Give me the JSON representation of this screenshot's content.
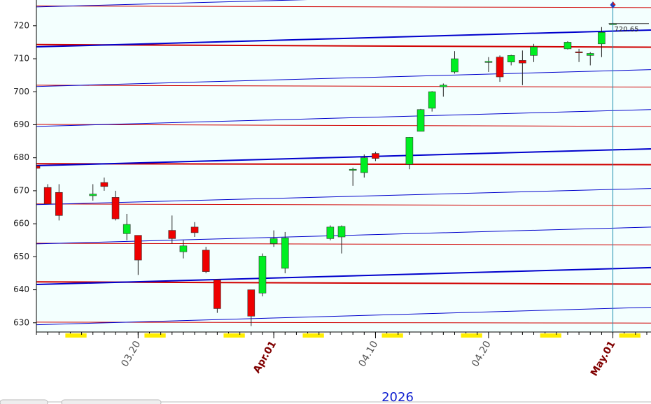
{
  "chart_data": {
    "type": "candlestick",
    "x": [
      "2026-03-11",
      "2026-03-12",
      "2026-03-13",
      "2026-03-16",
      "2026-03-17",
      "2026-03-18",
      "2026-03-19",
      "2026-03-20",
      "2026-03-23",
      "2026-03-24",
      "2026-03-25",
      "2026-03-26",
      "2026-03-27",
      "2026-03-30",
      "2026-03-31",
      "2026-04-01",
      "2026-04-02",
      "2026-04-06",
      "2026-04-07",
      "2026-04-08",
      "2026-04-09",
      "2026-04-10",
      "2026-04-13",
      "2026-04-14",
      "2026-04-15",
      "2026-04-16",
      "2026-04-17",
      "2026-04-20",
      "2026-04-21",
      "2026-04-22",
      "2026-04-23",
      "2026-04-24",
      "2026-04-27",
      "2026-04-28",
      "2026-04-29",
      "2026-04-30",
      "2026-05-01"
    ],
    "series": {
      "up_color": "#00ee22",
      "down_color": "#ee0000",
      "open": [
        677.5,
        671,
        669.5,
        668.5,
        672.5,
        668,
        657,
        656.5,
        658,
        651.5,
        659,
        652,
        643,
        640,
        639,
        654,
        646.5,
        655.5,
        656,
        676.3,
        675.5,
        681.3,
        678,
        688,
        695,
        701.5,
        706,
        709,
        710.5,
        709,
        709.5,
        711,
        713,
        712.1,
        711,
        714.5,
        720.65
      ],
      "high": [
        680,
        672,
        672,
        672,
        674,
        670,
        663,
        656.5,
        662.5,
        655,
        660.5,
        653,
        643,
        640,
        651,
        658,
        657.5,
        659.5,
        659.5,
        677,
        681,
        681.8,
        686.3,
        694.8,
        700.2,
        702.5,
        712.3,
        710.5,
        711,
        711.2,
        712.5,
        714.5,
        715.3,
        713,
        712,
        719.6,
        721
      ],
      "low": [
        673,
        666,
        661,
        667,
        670,
        661,
        655,
        644.5,
        654,
        649.5,
        656,
        645,
        633,
        629,
        638,
        653,
        645,
        655,
        651,
        671.5,
        674,
        679,
        676.5,
        688,
        694,
        698.5,
        705.5,
        706,
        703,
        708,
        702,
        709,
        712.8,
        709,
        708,
        710.5,
        720.5
      ],
      "close": [
        676.8,
        666,
        662.5,
        669,
        671.3,
        661.5,
        659.8,
        649,
        655.5,
        653.3,
        657.3,
        645.5,
        634.3,
        632,
        650.2,
        655.5,
        655.7,
        659,
        659.2,
        676.5,
        680,
        679.8,
        686.2,
        694.6,
        700,
        702,
        710,
        709.2,
        704.5,
        711,
        708.7,
        713.6,
        715,
        712,
        711.6,
        718,
        720.65
      ]
    },
    "lines": [
      {
        "color": "#d00000",
        "width": 1,
        "values": [
          726,
          725.5
        ]
      },
      {
        "color": "#d00000",
        "width": 2,
        "values": [
          714.3,
          713.5
        ]
      },
      {
        "color": "#d00000",
        "width": 1,
        "values": [
          702,
          701.4
        ]
      },
      {
        "color": "#d00000",
        "width": 1,
        "values": [
          690.1,
          689.5
        ]
      },
      {
        "color": "#d00000",
        "width": 2,
        "values": [
          678.2,
          677.9
        ]
      },
      {
        "color": "#d00000",
        "width": 1,
        "values": [
          666,
          665.5
        ]
      },
      {
        "color": "#d00000",
        "width": 1,
        "values": [
          654.1,
          653.6
        ]
      },
      {
        "color": "#d00000",
        "width": 2,
        "values": [
          642.4,
          641.7
        ]
      },
      {
        "color": "#d00000",
        "width": 1,
        "values": [
          630.2,
          629.9
        ]
      },
      {
        "color": "#0000cc",
        "width": 1,
        "values": [
          725.7,
          730.7
        ]
      },
      {
        "color": "#0000cc",
        "width": 2,
        "values": [
          713.6,
          718.7
        ]
      },
      {
        "color": "#0000cc",
        "width": 1,
        "values": [
          701.6,
          706.7
        ]
      },
      {
        "color": "#0000cc",
        "width": 1,
        "values": [
          689.5,
          694.6
        ]
      },
      {
        "color": "#0000cc",
        "width": 2,
        "values": [
          677.6,
          682.7
        ]
      },
      {
        "color": "#0000cc",
        "width": 1,
        "values": [
          665.8,
          670.7
        ]
      },
      {
        "color": "#0000cc",
        "width": 1,
        "values": [
          653.9,
          659
        ]
      },
      {
        "color": "#0000cc",
        "width": 2,
        "values": [
          641.6,
          646.7
        ]
      },
      {
        "color": "#0000cc",
        "width": 1,
        "values": [
          629.4,
          634.7
        ]
      }
    ],
    "last_price": 720.65,
    "xlabel": "2026",
    "xlim": [
      "2026-03-11",
      "2026-05-04"
    ],
    "xticks": [
      {
        "value": "2026-03-20",
        "label": "03.20",
        "color": "#555555"
      },
      {
        "value": "2026-04-01",
        "label": "Apr.01",
        "color": "#800000"
      },
      {
        "value": "2026-04-10",
        "label": "04.10",
        "color": "#555555"
      },
      {
        "value": "2026-04-20",
        "label": "04.20",
        "color": "#555555"
      },
      {
        "value": "2026-05-01",
        "label": "May.01",
        "color": "#800000"
      }
    ],
    "ylim": [
      627.2,
      727.8
    ],
    "yticks": [
      630,
      640,
      650,
      660,
      670,
      680,
      690,
      700,
      710,
      720
    ]
  }
}
